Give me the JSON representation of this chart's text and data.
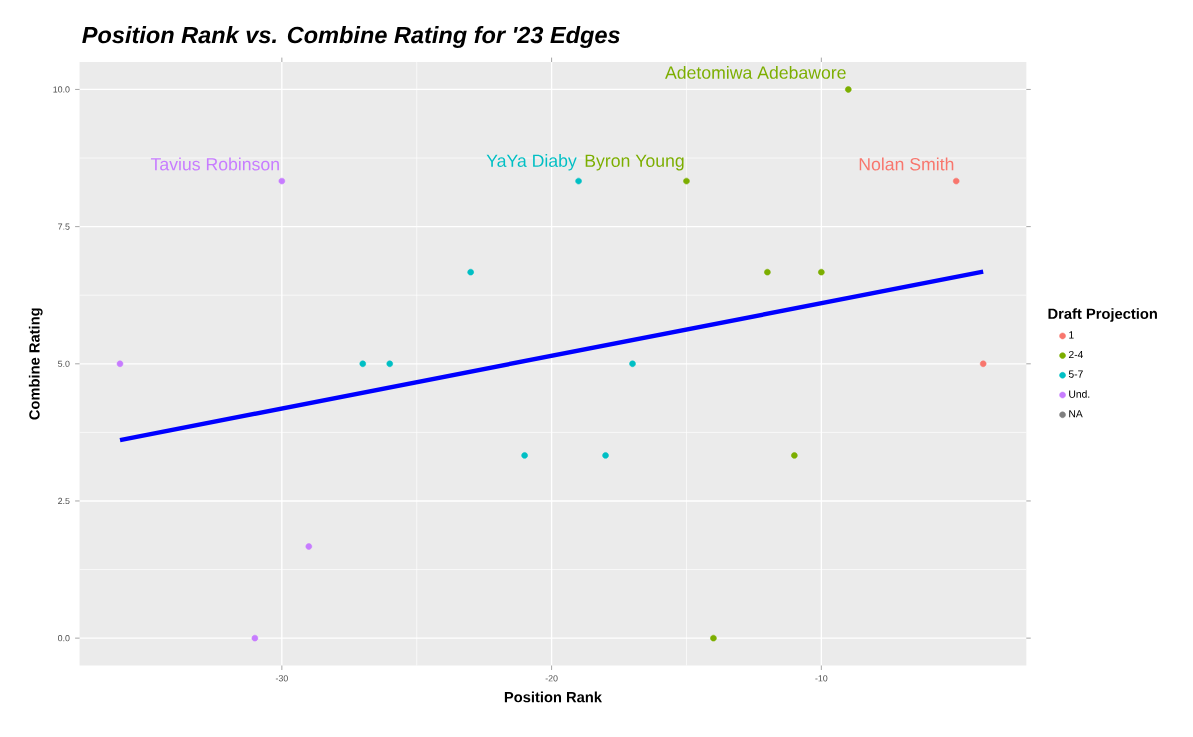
{
  "chart_data": {
    "type": "scatter",
    "title": "Position Rank vs. Combine Rating for '23 Edges",
    "xlabel": "Position Rank",
    "ylabel": "Combine Rating",
    "legend_title": "Draft Projection",
    "xlim": [
      -37.5,
      -2.4
    ],
    "ylim": [
      -0.5,
      10.5
    ],
    "xticks": [
      -30,
      -20,
      -10
    ],
    "yticks": [
      {
        "value": 0,
        "label": "0.0"
      },
      {
        "value": 2.5,
        "label": "2.5"
      },
      {
        "value": 5,
        "label": "5.0"
      },
      {
        "value": 7.5,
        "label": "7.5"
      },
      {
        "value": 10,
        "label": "10.0"
      }
    ],
    "grid": true,
    "legend": "right",
    "series": [
      {
        "name": "1",
        "color": "#f8766d",
        "x": [
          -5,
          -4
        ],
        "values": [
          8.33,
          5
        ]
      },
      {
        "name": "2-4",
        "color": "#7cae00",
        "x": [
          -15,
          -14,
          -12,
          -11,
          -10,
          -9
        ],
        "values": [
          8.33,
          0,
          6.67,
          3.33,
          6.67,
          10
        ]
      },
      {
        "name": "5-7",
        "color": "#00bfc4",
        "x": [
          -27,
          -26,
          -23,
          -21,
          -19,
          -18,
          -17
        ],
        "values": [
          5,
          5,
          6.67,
          3.33,
          8.33,
          3.33,
          5
        ]
      },
      {
        "name": "Und.",
        "color": "#c77cff",
        "x": [
          -36,
          -31,
          -30,
          -29
        ],
        "values": [
          5,
          0,
          8.33,
          1.67
        ]
      },
      {
        "name": "NA",
        "color": "#7f7f7f"
      },
      {
        "type": "line",
        "marker": "none",
        "color": "#0000ff",
        "x": [
          -36,
          -4
        ],
        "values": [
          3.61,
          6.68
        ]
      }
    ],
    "annotations": [
      {
        "text": "Tavius Robinson",
        "x": -30,
        "y": 8.33
      },
      {
        "text": "YaYa Diaby",
        "x": -19,
        "y": 8.33
      },
      {
        "text": "Byron Young",
        "x": -15,
        "y": 8.33
      },
      {
        "text": "Adetomiwa Adebawore",
        "x": -9,
        "y": 10
      },
      {
        "text": "Nolan Smith",
        "x": -5,
        "y": 8.33
      }
    ]
  }
}
